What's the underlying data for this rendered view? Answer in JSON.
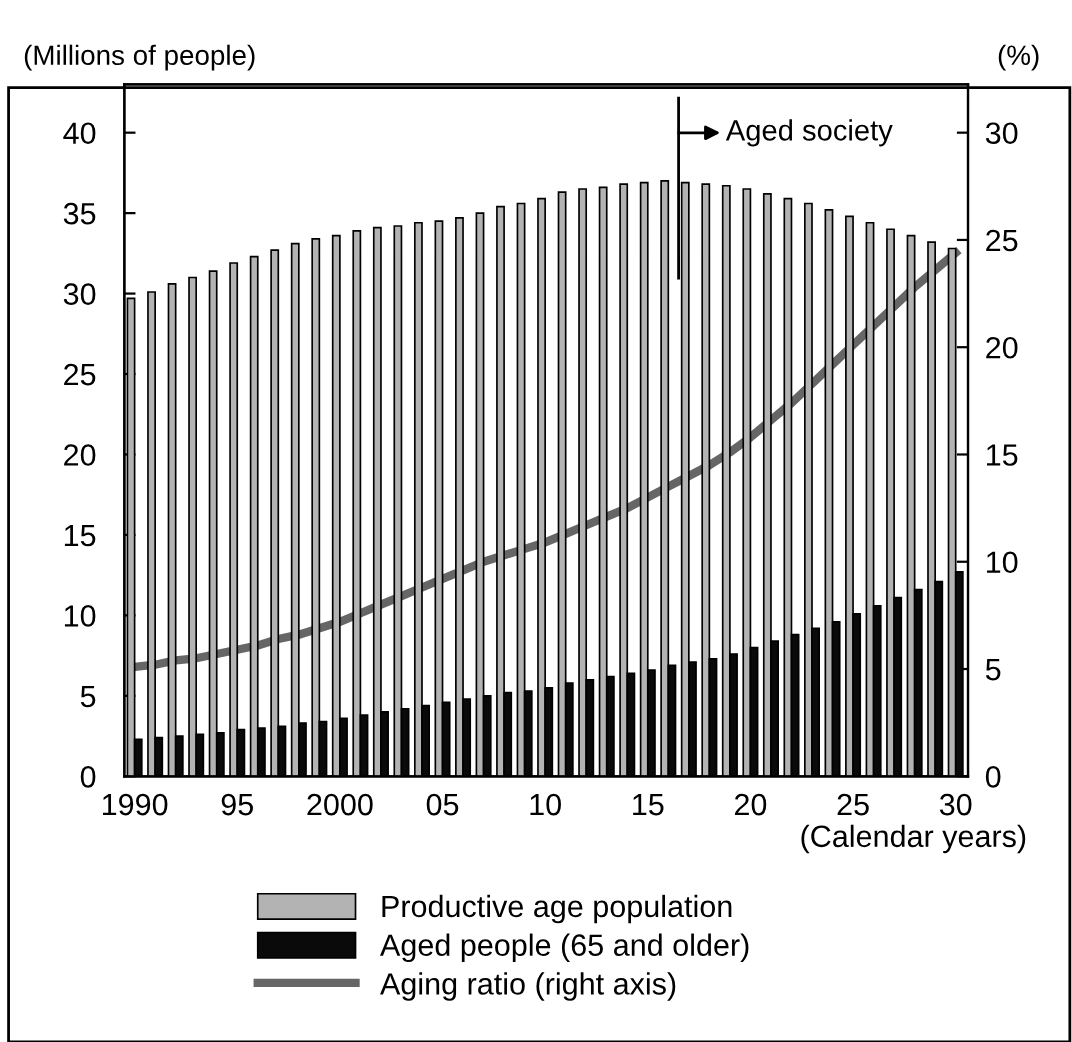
{
  "chart_data": {
    "type": "bar",
    "xlabel": "(Calendar years)",
    "ylabel": "(Millions of people)",
    "y2label": "(%)",
    "x": [
      1990,
      1991,
      1992,
      1993,
      1994,
      1995,
      1996,
      1997,
      1998,
      1999,
      2000,
      2001,
      2002,
      2003,
      2004,
      2005,
      2006,
      2007,
      2008,
      2009,
      2010,
      2011,
      2012,
      2013,
      2014,
      2015,
      2016,
      2017,
      2018,
      2019,
      2020,
      2021,
      2022,
      2023,
      2024,
      2025,
      2026,
      2027,
      2028,
      2029,
      2030
    ],
    "series": [
      {
        "name": "Productive age population",
        "color": "#b3b3b3",
        "values": [
          29.7,
          30.1,
          30.6,
          31.0,
          31.4,
          31.9,
          32.3,
          32.7,
          33.1,
          33.4,
          33.6,
          33.9,
          34.1,
          34.2,
          34.4,
          34.5,
          34.7,
          35.0,
          35.4,
          35.6,
          35.9,
          36.3,
          36.5,
          36.6,
          36.8,
          36.9,
          37.0,
          36.9,
          36.8,
          36.7,
          36.5,
          36.2,
          35.9,
          35.6,
          35.2,
          34.8,
          34.4,
          34.0,
          33.6,
          33.2,
          32.8
        ]
      },
      {
        "name": "Aged people (65 and older)",
        "color": "#0a0a0a",
        "values": [
          2.3,
          2.4,
          2.5,
          2.6,
          2.7,
          2.9,
          3.0,
          3.1,
          3.3,
          3.4,
          3.6,
          3.8,
          4.0,
          4.2,
          4.4,
          4.6,
          4.8,
          5.0,
          5.2,
          5.3,
          5.5,
          5.8,
          6.0,
          6.2,
          6.4,
          6.6,
          6.9,
          7.1,
          7.3,
          7.6,
          8.0,
          8.4,
          8.8,
          9.2,
          9.6,
          10.1,
          10.6,
          11.1,
          11.6,
          12.1,
          12.7
        ]
      },
      {
        "name": "Aging ratio (right axis)",
        "type": "line",
        "axis": "y2",
        "color": "#666666",
        "values": [
          5.1,
          5.2,
          5.4,
          5.5,
          5.7,
          5.9,
          6.1,
          6.4,
          6.6,
          6.9,
          7.2,
          7.6,
          8.0,
          8.4,
          8.8,
          9.2,
          9.6,
          10.0,
          10.3,
          10.6,
          10.9,
          11.3,
          11.7,
          12.1,
          12.5,
          13.0,
          13.5,
          14.0,
          14.5,
          15.1,
          15.8,
          16.6,
          17.4,
          18.3,
          19.2,
          20.1,
          21.0,
          21.9,
          22.8,
          23.6,
          24.4
        ]
      }
    ],
    "xlim": [
      1989.5,
      2030.6
    ],
    "xticks": [
      {
        "value": 1990,
        "label": "1990"
      },
      {
        "value": 1995,
        "label": "95"
      },
      {
        "value": 2000,
        "label": "2000"
      },
      {
        "value": 2005,
        "label": "05"
      },
      {
        "value": 2010,
        "label": "10"
      },
      {
        "value": 2015,
        "label": "15"
      },
      {
        "value": 2020,
        "label": "20"
      },
      {
        "value": 2025,
        "label": "25"
      },
      {
        "value": 2030,
        "label": "30"
      }
    ],
    "ylim": [
      0,
      43
    ],
    "yticks": [
      0,
      5,
      10,
      15,
      20,
      25,
      30,
      35,
      40
    ],
    "y2lim": [
      0,
      32.25
    ],
    "y2ticks": [
      0,
      5,
      10,
      15,
      20,
      25,
      30
    ],
    "ref_lines": [
      {
        "axis": "x",
        "value": 2016.5,
        "label": "Aged society",
        "color": "#000000"
      }
    ],
    "marker": "none",
    "line_style": "solid",
    "grid": false,
    "legend": "bottom"
  }
}
